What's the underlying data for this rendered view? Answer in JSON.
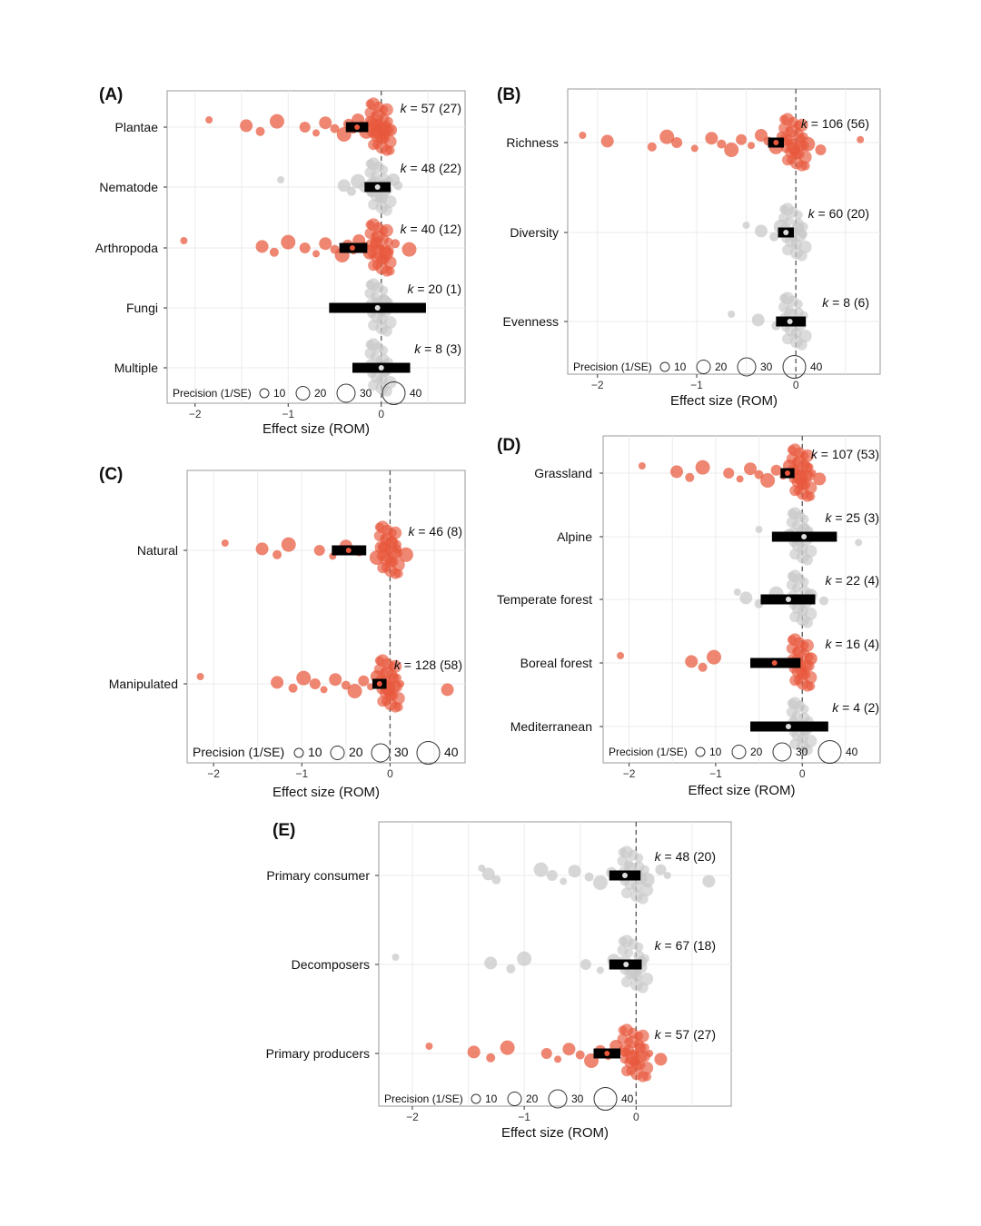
{
  "colors": {
    "significant": "#E8573C",
    "nonsignificant": "#C8C8C8",
    "bar": "#000000",
    "frame": "#9A9A9A",
    "grid": "#EBEBEB",
    "zero_line": "#555555"
  },
  "chart_data": [
    {
      "type": "scatter",
      "panel": "(A)",
      "categories": [
        "Plantae",
        "Nematode",
        "Arthropoda",
        "Fungi",
        "Multiple"
      ],
      "k_labels": [
        "57 (27)",
        "48 (22)",
        "40 (12)",
        "20 (1)",
        "8 (3)"
      ],
      "estimates": [
        -0.26,
        -0.04,
        -0.31,
        -0.04,
        0.0
      ],
      "ci_low": [
        -0.38,
        -0.18,
        -0.45,
        -0.56,
        -0.31
      ],
      "ci_high": [
        -0.14,
        0.1,
        -0.15,
        0.48,
        0.31
      ],
      "significant": [
        true,
        false,
        true,
        false,
        false
      ],
      "points": [
        [
          -1.85,
          -1.45,
          -1.3,
          -1.12,
          -0.82,
          -0.7,
          -0.6,
          -0.5,
          -0.4,
          -0.35,
          -0.3,
          -0.25,
          -0.2,
          -0.16,
          -0.12,
          -0.08,
          -0.05,
          -0.02,
          0.0,
          0.03,
          0.06,
          0.1
        ],
        [
          -1.08,
          -0.4,
          -0.32,
          -0.25,
          -0.18,
          -0.12,
          -0.07,
          -0.03,
          0.0,
          0.04,
          0.08,
          0.13,
          0.18
        ],
        [
          -2.12,
          -1.28,
          -1.15,
          -1.0,
          -0.82,
          -0.7,
          -0.6,
          -0.5,
          -0.42,
          -0.36,
          -0.3,
          -0.24,
          -0.18,
          -0.12,
          -0.06,
          0.0,
          0.06,
          0.15,
          0.3
        ],
        [
          -0.06,
          -0.02,
          0.0,
          0.03
        ],
        [
          -0.02,
          0.0,
          0.04
        ]
      ],
      "xlabel": "Effect size (ROM)",
      "xlim": [
        -2.3,
        0.9
      ],
      "xticks": [
        -2,
        -1,
        0
      ],
      "precision_legend": {
        "title": "Precision (1/SE)",
        "values": [
          10,
          20,
          30,
          40
        ]
      }
    },
    {
      "type": "scatter",
      "panel": "(B)",
      "categories": [
        "Richness",
        "Diversity",
        "Evenness"
      ],
      "k_labels": [
        "106 (56)",
        "60 (20)",
        "8 (6)"
      ],
      "estimates": [
        -0.2,
        -0.1,
        -0.06
      ],
      "ci_low": [
        -0.28,
        -0.18,
        -0.2
      ],
      "ci_high": [
        -0.12,
        -0.02,
        0.1
      ],
      "significant": [
        true,
        false,
        false
      ],
      "points": [
        [
          -2.15,
          -1.9,
          -1.45,
          -1.3,
          -1.2,
          -1.02,
          -0.85,
          -0.75,
          -0.65,
          -0.55,
          -0.45,
          -0.35,
          -0.28,
          -0.2,
          -0.14,
          -0.08,
          -0.02,
          0.05,
          0.12,
          0.25,
          0.65
        ],
        [
          -0.5,
          -0.35,
          -0.22,
          -0.15,
          -0.08,
          -0.03,
          0.02,
          0.07
        ],
        [
          -0.65,
          -0.38,
          -0.2,
          -0.05,
          0.05
        ]
      ],
      "xlabel": "Effect size (ROM)",
      "xlim": [
        -2.3,
        0.85
      ],
      "xticks": [
        -2,
        -1,
        0
      ],
      "precision_legend": {
        "title": "Precision (1/SE)",
        "values": [
          10,
          20,
          30,
          40
        ]
      }
    },
    {
      "type": "scatter",
      "panel": "(C)",
      "categories": [
        "Natural",
        "Manipulated"
      ],
      "k_labels": [
        "46 (8)",
        "128 (58)"
      ],
      "estimates": [
        -0.47,
        -0.12
      ],
      "ci_low": [
        -0.66,
        -0.2
      ],
      "ci_high": [
        -0.27,
        -0.04
      ],
      "significant": [
        true,
        true
      ],
      "points": [
        [
          -1.87,
          -1.45,
          -1.28,
          -1.15,
          -0.8,
          -0.65,
          -0.5,
          -0.35,
          -0.15,
          -0.08,
          -0.03,
          0.02,
          0.08,
          0.18
        ],
        [
          -2.15,
          -1.28,
          -1.1,
          -0.98,
          -0.85,
          -0.75,
          -0.62,
          -0.5,
          -0.4,
          -0.3,
          -0.22,
          -0.15,
          -0.08,
          -0.02,
          0.04,
          0.12,
          0.65
        ]
      ],
      "xlabel": "Effect size (ROM)",
      "xlim": [
        -2.3,
        0.85
      ],
      "xticks": [
        -2,
        -1,
        0
      ],
      "precision_legend": {
        "title": "Precision (1/SE)",
        "values": [
          10,
          20,
          30,
          40
        ]
      }
    },
    {
      "type": "scatter",
      "panel": "(D)",
      "categories": [
        "Grassland",
        "Alpine",
        "Temperate forest",
        "Boreal forest",
        "Mediterranean"
      ],
      "k_labels": [
        "107 (53)",
        "25 (3)",
        "22 (4)",
        "16 (4)",
        "4 (2)"
      ],
      "estimates": [
        -0.17,
        0.02,
        -0.16,
        -0.32,
        -0.16
      ],
      "ci_low": [
        -0.25,
        -0.35,
        -0.48,
        -0.6,
        -0.6
      ],
      "ci_high": [
        -0.09,
        0.4,
        0.15,
        -0.02,
        0.3
      ],
      "significant": [
        true,
        false,
        false,
        true,
        false
      ],
      "points": [
        [
          -1.85,
          -1.45,
          -1.3,
          -1.15,
          -0.85,
          -0.72,
          -0.6,
          -0.5,
          -0.4,
          -0.3,
          -0.22,
          -0.15,
          -0.08,
          -0.02,
          0.05,
          0.12,
          0.2
        ],
        [
          -0.5,
          -0.15,
          -0.05,
          0.02,
          0.1,
          0.65
        ],
        [
          -0.75,
          -0.65,
          -0.5,
          -0.3,
          -0.1,
          0.0,
          0.1,
          0.25
        ],
        [
          -2.1,
          -1.28,
          -1.15,
          -1.02,
          -0.05,
          0.02,
          0.1
        ],
        [
          -0.1,
          -0.02,
          0.04
        ]
      ],
      "xlabel": "Effect size (ROM)",
      "xlim": [
        -2.3,
        0.9
      ],
      "xticks": [
        -2,
        -1,
        0
      ],
      "precision_legend": {
        "title": "Precision (1/SE)",
        "values": [
          10,
          20,
          30,
          40
        ]
      }
    },
    {
      "type": "scatter",
      "panel": "(E)",
      "categories": [
        "Primary consumer",
        "Decomposers",
        "Primary producers"
      ],
      "k_labels": [
        "48 (20)",
        "67 (18)",
        "57 (27)"
      ],
      "estimates": [
        -0.1,
        -0.09,
        -0.26
      ],
      "ci_low": [
        -0.24,
        -0.24,
        -0.38
      ],
      "ci_high": [
        0.04,
        0.05,
        -0.14
      ],
      "significant": [
        false,
        false,
        true
      ],
      "points": [
        [
          -1.38,
          -1.32,
          -1.25,
          -0.85,
          -0.75,
          -0.65,
          -0.55,
          -0.42,
          -0.32,
          -0.22,
          -0.12,
          -0.05,
          0.02,
          0.1,
          0.22,
          0.28,
          0.65
        ],
        [
          -2.15,
          -1.3,
          -1.12,
          -1.0,
          -0.45,
          -0.32,
          -0.2,
          -0.1,
          -0.02,
          0.05
        ],
        [
          -1.85,
          -1.45,
          -1.3,
          -1.15,
          -0.8,
          -0.7,
          -0.6,
          -0.5,
          -0.4,
          -0.32,
          -0.25,
          -0.18,
          -0.1,
          -0.03,
          0.04,
          0.12,
          0.22
        ]
      ],
      "xlabel": "Effect size (ROM)",
      "xlim": [
        -2.3,
        0.85
      ],
      "xticks": [
        -2,
        -1,
        0
      ],
      "precision_legend": {
        "title": "Precision (1/SE)",
        "values": [
          10,
          20,
          30,
          40
        ]
      }
    }
  ]
}
